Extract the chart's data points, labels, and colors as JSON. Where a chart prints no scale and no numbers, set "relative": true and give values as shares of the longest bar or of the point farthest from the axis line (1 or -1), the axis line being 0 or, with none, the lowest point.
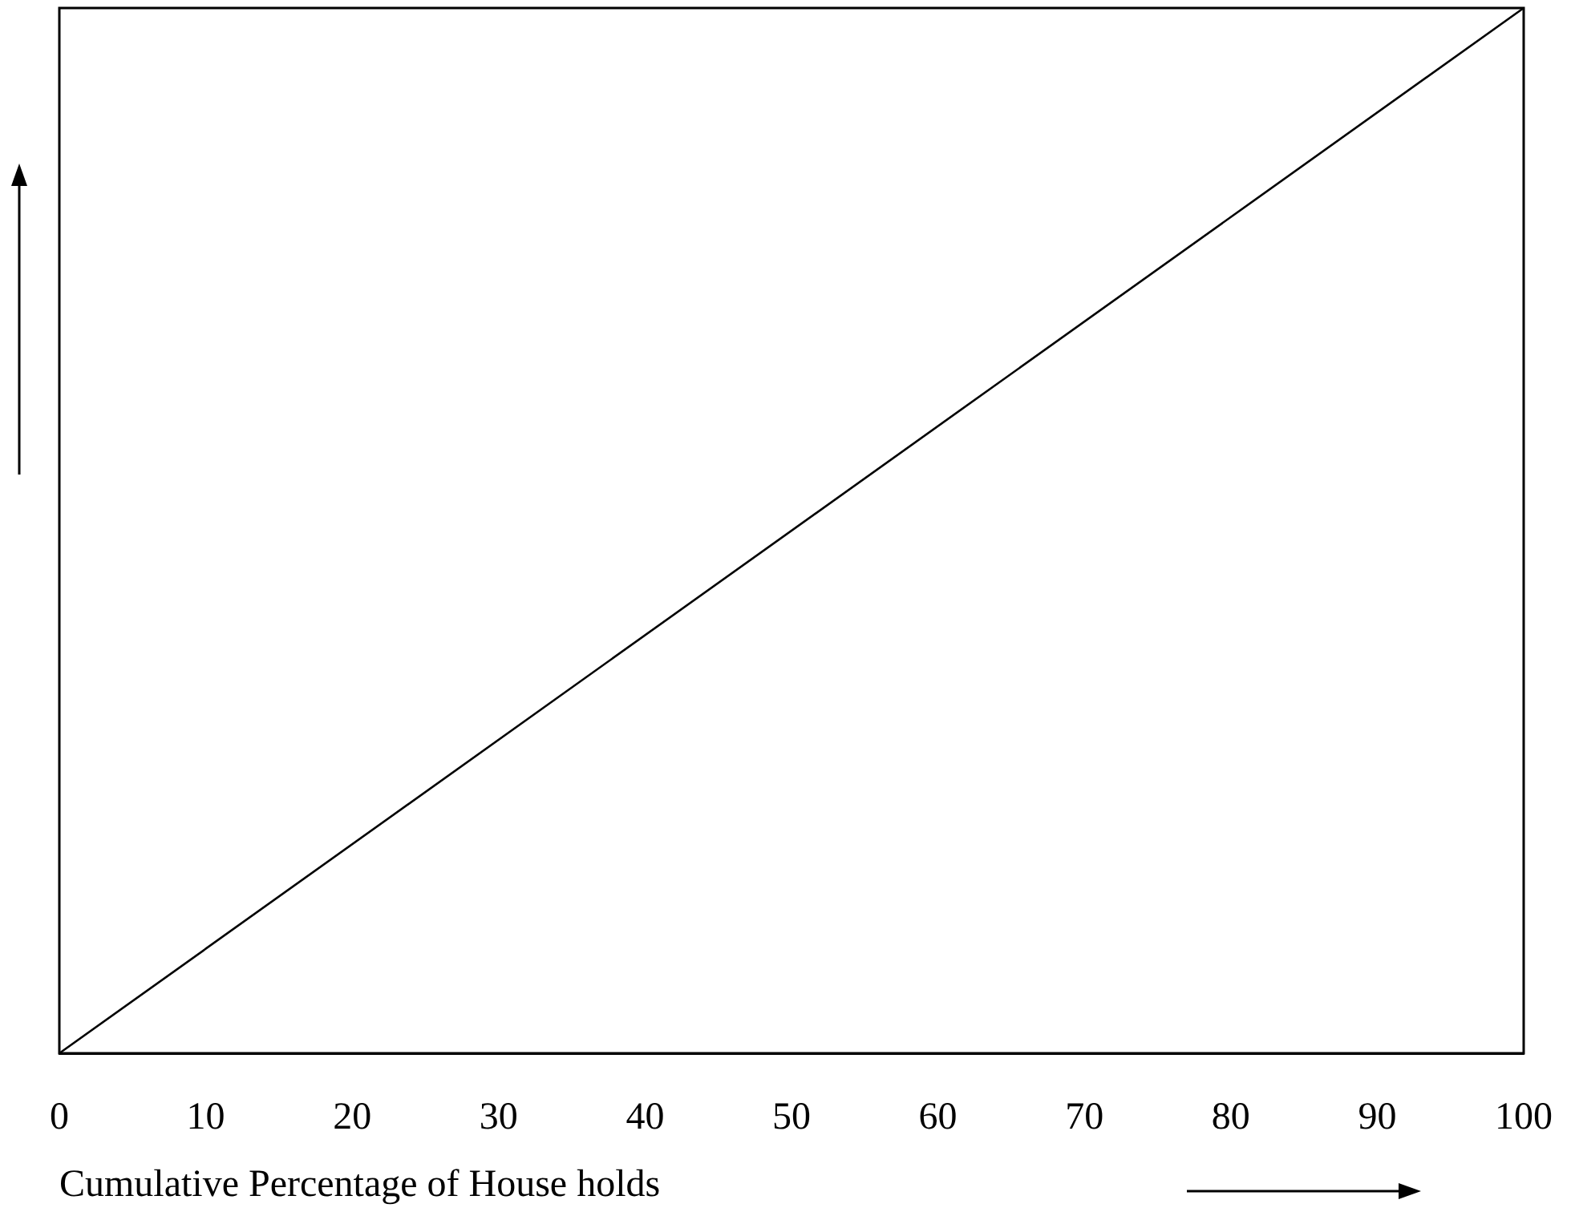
{
  "chart_data": {
    "type": "line",
    "xlabel": "Cumulative Percentage of House holds",
    "x": [
      0,
      100
    ],
    "values": [
      0,
      1
    ],
    "color": "#000000",
    "relative": true,
    "xlim": [
      0,
      100
    ],
    "xticks": [
      0,
      10,
      20,
      30,
      40,
      50,
      60,
      70,
      80,
      90,
      100
    ],
    "marker": "none",
    "line_style": "solid",
    "grid": false
  }
}
